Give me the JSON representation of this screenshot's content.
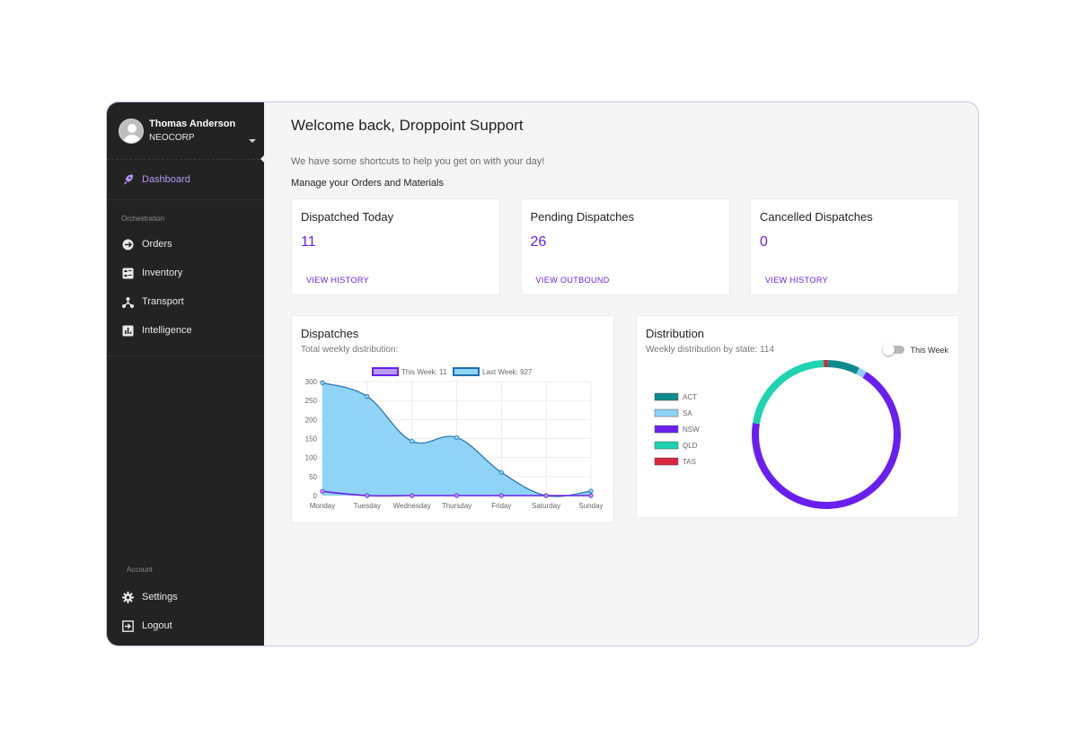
{
  "user": {
    "name": "Thomas Anderson",
    "org": "NEOCORP"
  },
  "sidebar": {
    "dashboard": "Dashboard",
    "orchestration_title": "Orchestration",
    "items": [
      {
        "label": "Orders",
        "icon": "orders-icon"
      },
      {
        "label": "Inventory",
        "icon": "inventory-icon"
      },
      {
        "label": "Transport",
        "icon": "transport-icon"
      },
      {
        "label": "Intelligence",
        "icon": "intelligence-icon"
      }
    ],
    "account_title": "Account",
    "settings": "Settings",
    "logout": "Logout"
  },
  "main": {
    "welcome": "Welcome back, Droppoint Support",
    "subtext": "We have some shortcuts to help you get on with your day!",
    "manage": "Manage your Orders and Materials",
    "cards": [
      {
        "title": "Dispatched Today",
        "value": "11",
        "link": "VIEW HISTORY"
      },
      {
        "title": "Pending Dispatches",
        "value": "26",
        "link": "VIEW OUTBOUND"
      },
      {
        "title": "Cancelled Dispatches",
        "value": "0",
        "link": "VIEW HISTORY"
      }
    ]
  },
  "dispatches": {
    "title": "Dispatches",
    "subtitle": "Total weekly distribution:"
  },
  "distribution": {
    "title": "Distribution",
    "subtitle": "Weekly distribution by state: 114",
    "toggle_label": "This Week"
  },
  "colors": {
    "accent": "#6a1ff0",
    "sidebar_bg": "#232323",
    "this_week": "#6a1ff0",
    "last_week_fill": "#8fd3f7",
    "last_week_line": "#1f6fb0",
    "act": "#0f8b8d",
    "sa": "#8fd3f7",
    "nsw": "#6a1ff0",
    "qld": "#1dd3b0",
    "tas": "#d7263d"
  },
  "chart_data": [
    {
      "type": "area",
      "categories": [
        "Monday",
        "Tuesday",
        "Wednesday",
        "Thursday",
        "Friday",
        "Saturday",
        "Sunday"
      ],
      "ylim": [
        0,
        300
      ],
      "yticks": [
        0,
        50,
        100,
        150,
        200,
        250,
        300
      ],
      "grid": true,
      "legend_position": "top",
      "series": [
        {
          "name": "This Week: 11",
          "values": [
            11,
            0,
            0,
            0,
            0,
            0,
            0
          ]
        },
        {
          "name": "Last Week: 927",
          "values": [
            297,
            261,
            143,
            153,
            61,
            0,
            12
          ]
        }
      ]
    },
    {
      "type": "pie",
      "legend_position": "left",
      "labels": [
        "ACT",
        "SA",
        "NSW",
        "QLD",
        "TAS"
      ],
      "values": [
        8,
        2,
        78,
        25,
        1
      ]
    }
  ]
}
